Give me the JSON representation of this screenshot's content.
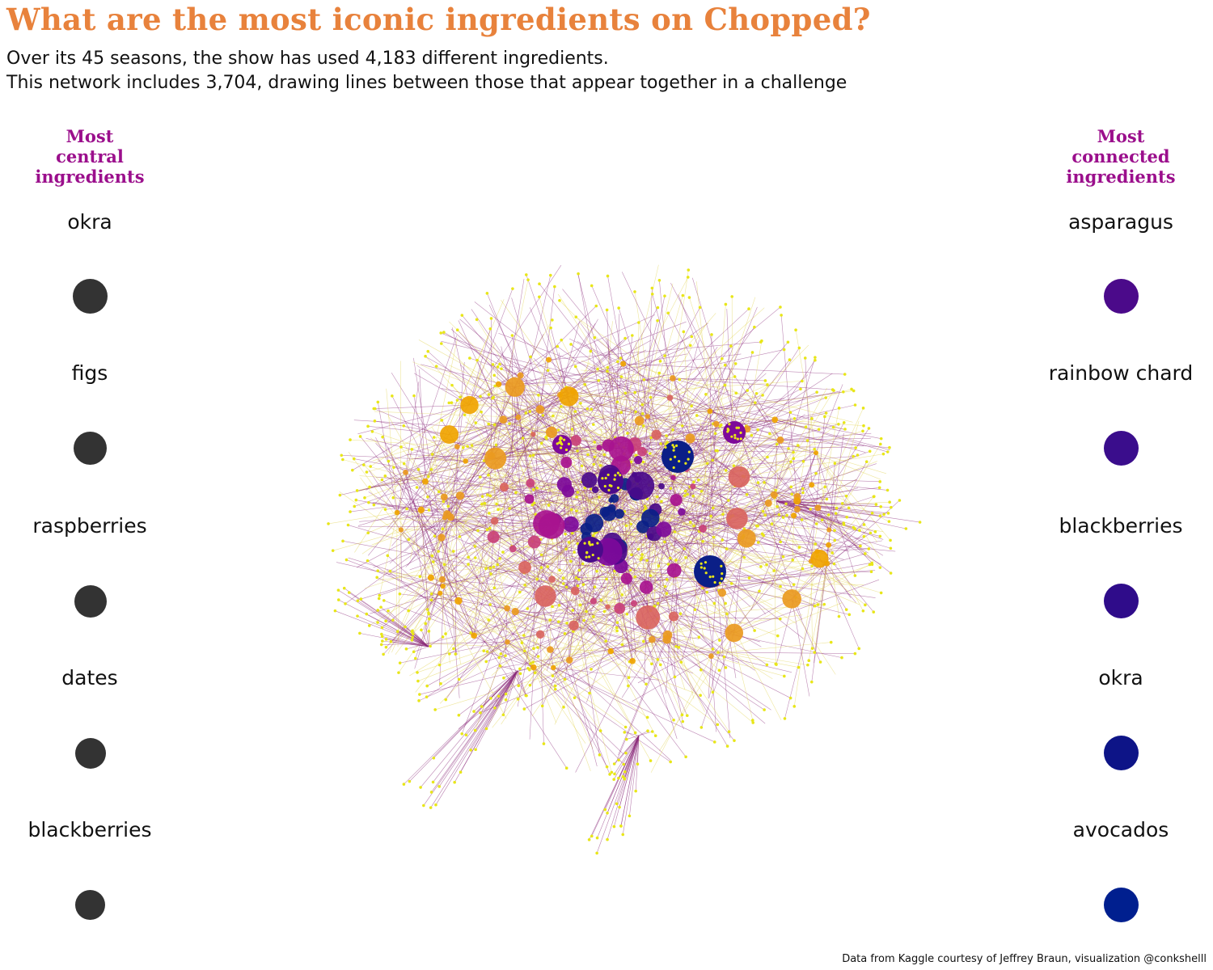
{
  "header": {
    "title": "What are the most iconic ingredients on Chopped?",
    "subtitle_line1": "Over its 45 seasons, the show has used 4,183 different ingredients.",
    "subtitle_line2": "This network includes 3,704, drawing lines between those that appear together in a challenge"
  },
  "central": {
    "heading": [
      "Most",
      "central",
      "ingredients"
    ],
    "items": [
      {
        "label": "okra",
        "color": "#333333"
      },
      {
        "label": "figs",
        "color": "#333333"
      },
      {
        "label": "raspberries",
        "color": "#333333"
      },
      {
        "label": "dates",
        "color": "#333333"
      },
      {
        "label": "blackberries",
        "color": "#333333"
      }
    ]
  },
  "connected": {
    "heading": [
      "Most",
      "connected",
      "ingredients"
    ],
    "items": [
      {
        "label": "asparagus",
        "color": "#4b0a8a"
      },
      {
        "label": "rainbow chard",
        "color": "#3a0d8c"
      },
      {
        "label": "blackberries",
        "color": "#2f0c8a"
      },
      {
        "label": "okra",
        "color": "#0d1487"
      },
      {
        "label": "avocados",
        "color": "#001f8f"
      }
    ]
  },
  "network_colors": {
    "edge": "#8a2a7a",
    "edge_light": "#e0d24a",
    "leaf": "#e8e619",
    "hub_palette": [
      "#f0a400",
      "#ea9a20",
      "#d9645f",
      "#c9417a",
      "#a8138f",
      "#7d0a9a",
      "#4a0a8a",
      "#0b1f87"
    ]
  },
  "footer": {
    "credit": "Data from Kaggle courtesy of Jeffrey Braun, visualization @conkshelll"
  }
}
